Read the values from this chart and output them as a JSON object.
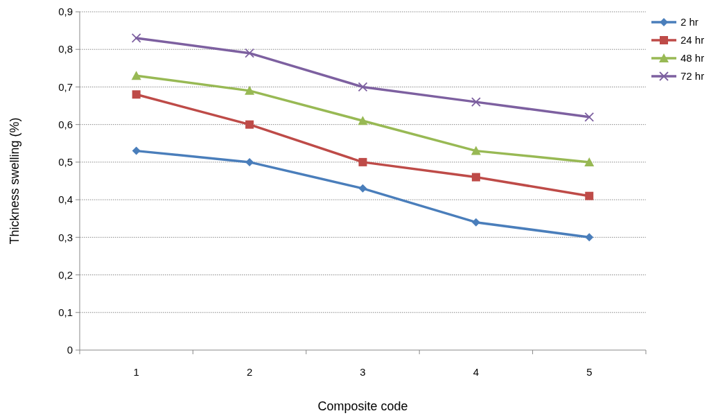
{
  "chart_data": {
    "type": "line",
    "xlabel": "Composite code",
    "ylabel": "Thickness swelling  (%)",
    "categories": [
      "1",
      "2",
      "3",
      "4",
      "5"
    ],
    "series": [
      {
        "name": "2 hr",
        "color": "#4a7ebb",
        "marker": "diamond",
        "values": [
          0.53,
          0.5,
          0.43,
          0.34,
          0.3
        ]
      },
      {
        "name": "24 hr",
        "color": "#be4b48",
        "marker": "square",
        "values": [
          0.68,
          0.6,
          0.5,
          0.46,
          0.41
        ]
      },
      {
        "name": "48 hr",
        "color": "#98b954",
        "marker": "triangle",
        "values": [
          0.73,
          0.69,
          0.61,
          0.53,
          0.5
        ]
      },
      {
        "name": "72 hr",
        "color": "#7d60a0",
        "marker": "cross",
        "values": [
          0.83,
          0.79,
          0.7,
          0.66,
          0.62
        ]
      }
    ],
    "ylim": [
      0,
      0.9
    ],
    "yticks": [
      0,
      {
        "value": 0.1,
        "label": "0,1"
      },
      {
        "value": 0.2,
        "label": "0,2"
      },
      {
        "value": 0.3,
        "label": "0,3"
      },
      {
        "value": 0.4,
        "label": "0,4"
      },
      {
        "value": 0.5,
        "label": "0,5"
      },
      {
        "value": 0.6,
        "label": "0,6"
      },
      {
        "value": 0.7,
        "label": "0,7"
      },
      {
        "value": 0.8,
        "label": "0,8"
      },
      {
        "value": 0.9,
        "label": "0,9"
      }
    ],
    "grid": "y",
    "legend": "top right",
    "line_style": "solid"
  }
}
